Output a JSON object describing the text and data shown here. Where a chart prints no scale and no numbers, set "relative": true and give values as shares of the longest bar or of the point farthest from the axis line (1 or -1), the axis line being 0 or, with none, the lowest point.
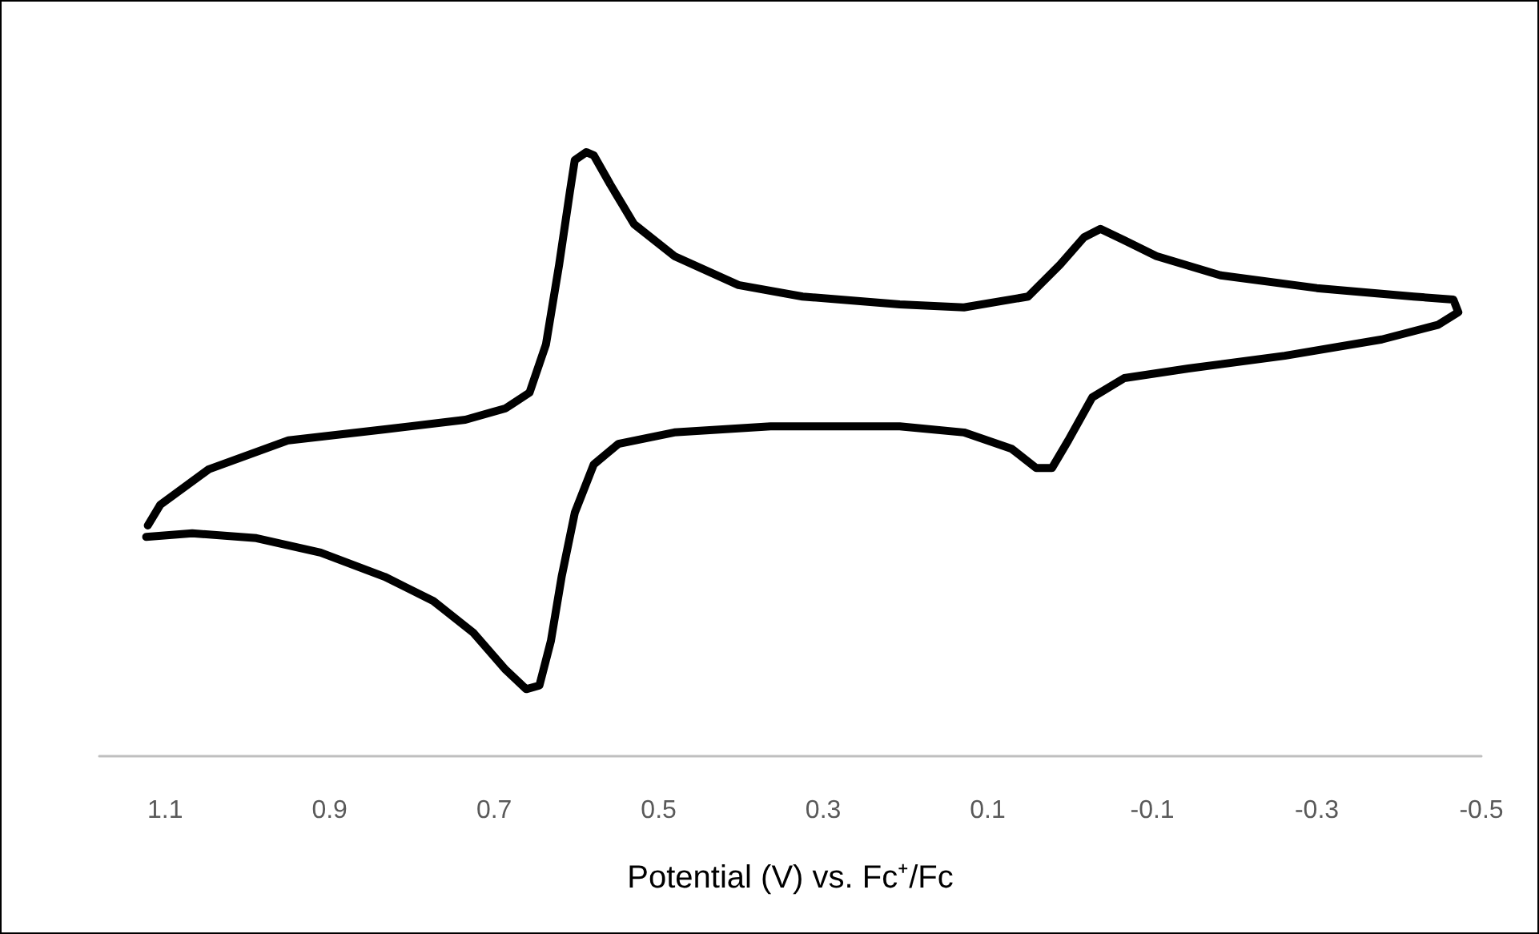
{
  "chart_data": {
    "type": "line",
    "xlabel": "Potential (V) vs. Fc⁺/Fc",
    "relative": true,
    "marker": "none",
    "line_style": "solid",
    "xlim": [
      1.18,
      -0.5
    ],
    "xticks": [
      1.1,
      0.9,
      0.7,
      0.5,
      0.3,
      0.1,
      -0.1,
      -0.3,
      -0.5
    ],
    "series": [
      {
        "color": "#000000",
        "x": [
          1.123,
          1.067,
          0.989,
          0.911,
          0.833,
          0.774,
          0.725,
          0.686,
          0.661,
          0.645,
          0.631,
          0.618,
          0.602,
          0.579,
          0.549,
          0.481,
          0.364,
          0.207,
          0.129,
          0.071,
          0.041,
          0.022,
          0.002,
          -0.027,
          -0.066,
          -0.144,
          -0.261,
          -0.379,
          -0.447,
          -0.472,
          -0.466,
          -0.418,
          -0.3,
          -0.183,
          -0.105,
          -0.066,
          -0.037,
          -0.017,
          0.012,
          0.051,
          0.129,
          0.207,
          0.325,
          0.403,
          0.481,
          0.53,
          0.559,
          0.579,
          0.588,
          0.602,
          0.608,
          0.621,
          0.637,
          0.657,
          0.686,
          0.735,
          0.833,
          0.95,
          1.047,
          1.106,
          1.121
        ],
        "values": [
          0.363,
          0.369,
          0.361,
          0.337,
          0.297,
          0.257,
          0.204,
          0.143,
          0.111,
          0.117,
          0.191,
          0.297,
          0.403,
          0.483,
          0.517,
          0.536,
          0.546,
          0.546,
          0.536,
          0.509,
          0.477,
          0.477,
          0.523,
          0.594,
          0.626,
          0.642,
          0.663,
          0.69,
          0.714,
          0.735,
          0.756,
          0.761,
          0.775,
          0.796,
          0.828,
          0.854,
          0.873,
          0.859,
          0.814,
          0.761,
          0.743,
          0.748,
          0.761,
          0.78,
          0.828,
          0.881,
          0.947,
          0.995,
          1,
          0.987,
          0.934,
          0.814,
          0.682,
          0.602,
          0.576,
          0.557,
          0.541,
          0.523,
          0.475,
          0.416,
          0.382
        ]
      }
    ]
  }
}
